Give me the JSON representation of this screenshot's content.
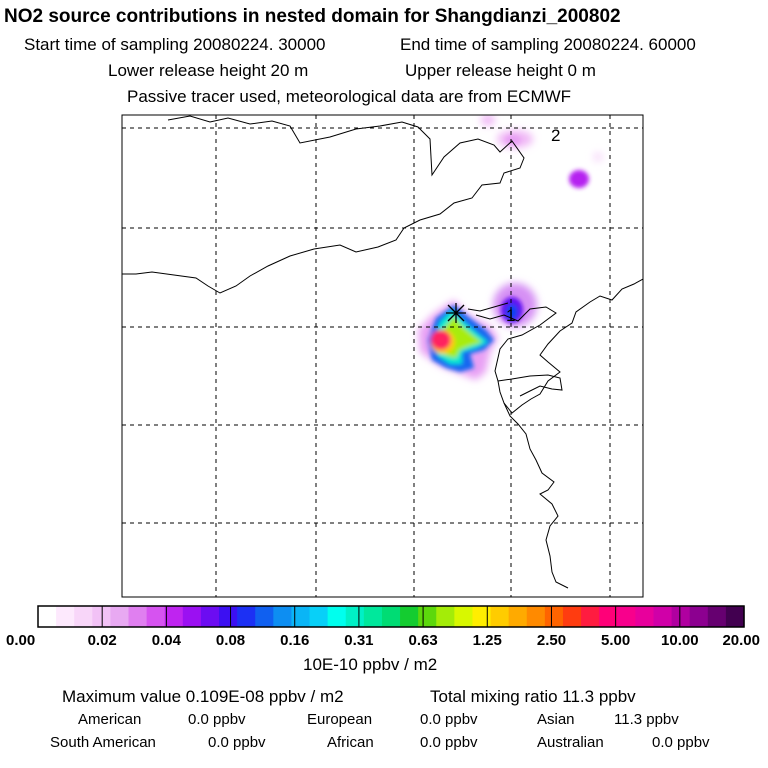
{
  "header": {
    "title": "NO2 source contributions in nested domain for Shangdianzi_200802",
    "start_label": "Start time of sampling 20080224. 30000",
    "end_label": "End time of sampling 20080224. 60000",
    "lower_label": "Lower release height   20 m",
    "upper_label": "Upper release height    0 m",
    "tracer_label": "Passive tracer used, meteorological data are from ECMWF"
  },
  "chart_data": {
    "type": "heatmap",
    "title": "NO2 source contributions in nested domain for Shangdianzi_200802",
    "map_labels": [
      "1",
      "2"
    ],
    "receptor_marker": "x",
    "grid": true,
    "colorbar": {
      "tick_labels": [
        "0.00",
        "0.02",
        "0.04",
        "0.08",
        "0.16",
        "0.31",
        "0.63",
        "1.25",
        "2.50",
        "5.00",
        "10.00",
        "20.00"
      ],
      "colors": [
        "#ffffff",
        "#fde9fd",
        "#f8d6f9",
        "#f2c2f6",
        "#e8a9f2",
        "#e07ff0",
        "#d653f0",
        "#bf24f0",
        "#9b10f2",
        "#6c0cf2",
        "#3c10f2",
        "#1c30f4",
        "#1060f0",
        "#0d8ef2",
        "#0ab5f6",
        "#08d0f8",
        "#00ffee",
        "#00f0c6",
        "#00e89c",
        "#00dc74",
        "#14cc30",
        "#5cd80c",
        "#a4ec08",
        "#d8f800",
        "#ffee00",
        "#ffcc00",
        "#ffaa00",
        "#ff8a00",
        "#ff6400",
        "#ff3c10",
        "#ff1c40",
        "#ff0078",
        "#f8008c",
        "#e8009c",
        "#d000a8",
        "#b000a0",
        "#8c0090",
        "#660070",
        "#420050"
      ],
      "units": "10E-10 ppbv / m2"
    },
    "stats": {
      "max_label": "Maximum value  0.109E-08 ppbv / m2",
      "total_label": "Total mixing ratio       11.3 ppbv",
      "regions": [
        {
          "name": "American",
          "value": "0.0 ppbv"
        },
        {
          "name": "European",
          "value": "0.0 ppbv"
        },
        {
          "name": "Asian",
          "value": "11.3 ppbv"
        },
        {
          "name": "South American",
          "value": "0.0 ppbv"
        },
        {
          "name": "African",
          "value": "0.0 ppbv"
        },
        {
          "name": "Australian",
          "value": "0.0 ppbv"
        }
      ]
    }
  }
}
